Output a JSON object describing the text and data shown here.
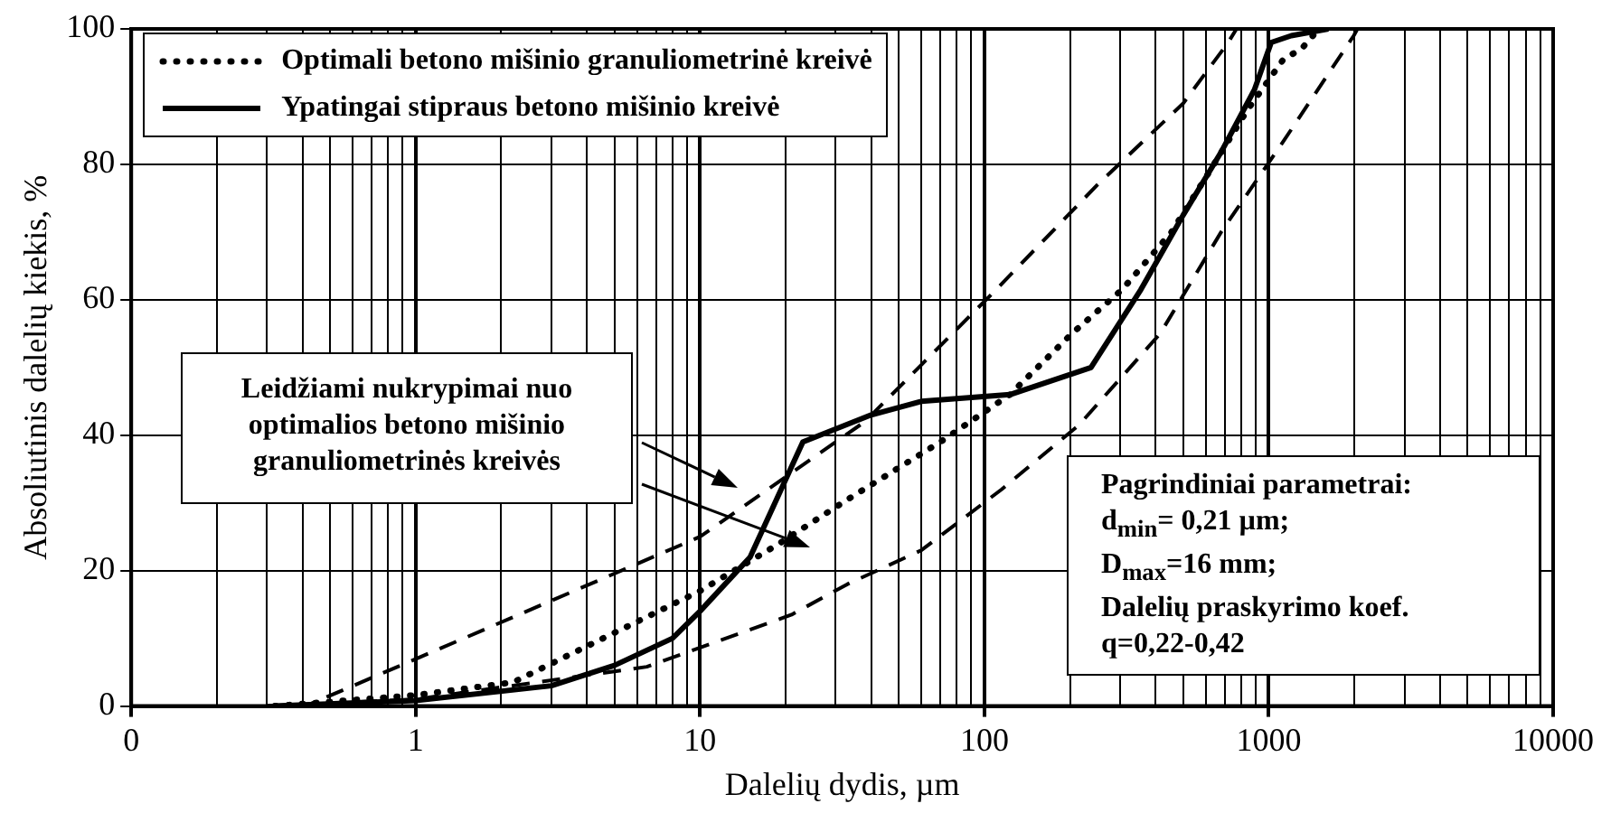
{
  "chart_data": {
    "type": "line",
    "xlabel": "Dalelių dydis, µm",
    "ylabel": "Absoliutinis dalelių kiekis, %",
    "log": "x",
    "grid": true,
    "legend": "top left",
    "marker": "none",
    "xlim": [
      0.1,
      10000
    ],
    "xticks": [
      {
        "value": 0.1,
        "label": "0"
      },
      {
        "value": 0.2,
        "label": null
      },
      {
        "value": 0.3,
        "label": null
      },
      {
        "value": 0.4,
        "label": null
      },
      {
        "value": 0.5,
        "label": null
      },
      {
        "value": 0.6,
        "label": null
      },
      {
        "value": 0.7,
        "label": null
      },
      {
        "value": 0.8,
        "label": null
      },
      {
        "value": 0.9,
        "label": null
      },
      1,
      {
        "value": 2,
        "label": null
      },
      {
        "value": 3,
        "label": null
      },
      {
        "value": 4,
        "label": null
      },
      {
        "value": 5,
        "label": null
      },
      {
        "value": 6,
        "label": null
      },
      {
        "value": 7,
        "label": null
      },
      {
        "value": 8,
        "label": null
      },
      {
        "value": 9,
        "label": null
      },
      10,
      {
        "value": 20,
        "label": null
      },
      {
        "value": 30,
        "label": null
      },
      {
        "value": 40,
        "label": null
      },
      {
        "value": 50,
        "label": null
      },
      {
        "value": 60,
        "label": null
      },
      {
        "value": 70,
        "label": null
      },
      {
        "value": 80,
        "label": null
      },
      {
        "value": 90,
        "label": null
      },
      100,
      {
        "value": 200,
        "label": null
      },
      {
        "value": 300,
        "label": null
      },
      {
        "value": 400,
        "label": null
      },
      {
        "value": 500,
        "label": null
      },
      {
        "value": 600,
        "label": null
      },
      {
        "value": 700,
        "label": null
      },
      {
        "value": 800,
        "label": null
      },
      {
        "value": 900,
        "label": null
      },
      1000,
      {
        "value": 2000,
        "label": null
      },
      {
        "value": 3000,
        "label": null
      },
      {
        "value": 4000,
        "label": null
      },
      {
        "value": 5000,
        "label": null
      },
      {
        "value": 6000,
        "label": null
      },
      {
        "value": 7000,
        "label": null
      },
      {
        "value": 8000,
        "label": null
      },
      {
        "value": 9000,
        "label": null
      },
      10000
    ],
    "ylim": [
      0,
      100
    ],
    "yticks": [
      0,
      20,
      40,
      60,
      80,
      100
    ],
    "series": [
      {
        "name": "Optimali betono mišinio granuliometrinė kreivė",
        "color": "#000000",
        "line_style": "dotted",
        "x": [
          0.32,
          1,
          2.2,
          10,
          19,
          33,
          70,
          123,
          203,
          305,
          455,
          620,
          840,
          1130,
          1300,
          1500
        ],
        "values": [
          0,
          1.6,
          3.5,
          17,
          24,
          30.5,
          39,
          46,
          55,
          61.5,
          70,
          79,
          88,
          95.6,
          97,
          100
        ]
      },
      {
        "name": "Ypatingai stipraus betono mišinio kreivė",
        "color": "#000000",
        "line_style": "solid",
        "x": [
          0.32,
          1,
          3,
          5,
          8,
          10,
          15,
          23,
          40,
          60,
          123,
          237,
          355,
          500,
          684,
          890,
          1020,
          1200,
          1620
        ],
        "values": [
          0,
          0.8,
          3,
          6,
          10,
          14,
          22,
          39,
          43,
          45,
          46,
          50,
          61.5,
          72.5,
          82,
          91,
          98,
          99,
          100
        ]
      },
      {
        "color": "#000000",
        "line_style": "dashed",
        "x": [
          0.3,
          0.41,
          0.97,
          10,
          38,
          110,
          250,
          500,
          720,
          770
        ],
        "values": [
          0,
          0,
          6.7,
          25,
          42,
          61.5,
          77,
          89,
          98,
          100
        ]
      },
      {
        "color": "#000000",
        "line_style": "dashed",
        "x": [
          0.3,
          1,
          6.5,
          21,
          33,
          60,
          115,
          215,
          415,
          680,
          1130,
          1990,
          2050
        ],
        "values": [
          0,
          1,
          5.8,
          13.5,
          18,
          23,
          32,
          41.5,
          55,
          70,
          83.5,
          99,
          100
        ]
      }
    ],
    "annotations": [
      "Leidžiami nukrypimai nuo optimalios betono mišinio granuliometrinės kreivės",
      "Pagrindiniai parametrai:\nd$_{min}$= 0,21 µm;\nD$_{max}$=16 mm;\nDalelių praskyrimo koef.\nq=0,22-0,42"
    ]
  }
}
